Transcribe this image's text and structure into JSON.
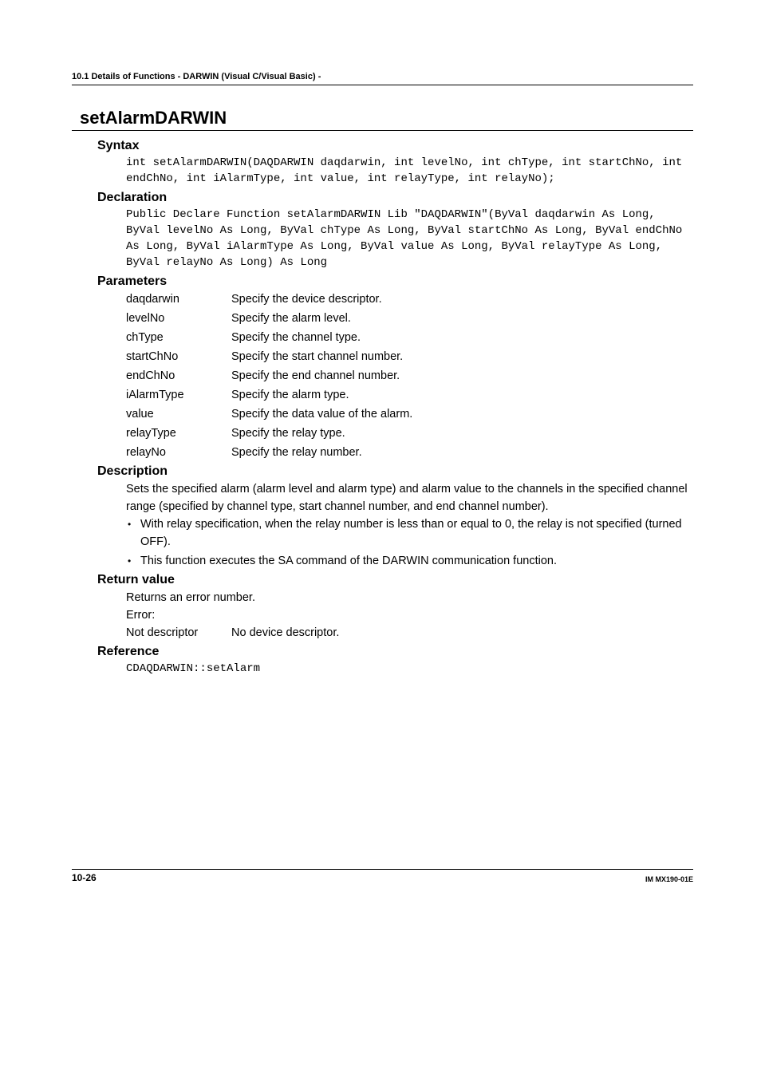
{
  "breadcrumb": "10.1  Details of Functions - DARWIN (Visual C/Visual   Basic) -",
  "fn_title": "setAlarmDARWIN",
  "sections": {
    "syntax": {
      "heading": "Syntax",
      "code": "int setAlarmDARWIN(DAQDARWIN daqdarwin, int levelNo, int chType, int startChNo, int endChNo, int iAlarmType, int value, int relayType, int relayNo);"
    },
    "declaration": {
      "heading": "Declaration",
      "code": "Public Declare Function setAlarmDARWIN Lib \"DAQDARWIN\"(ByVal daqdarwin As Long, ByVal levelNo As Long, ByVal chType As Long, ByVal startChNo As Long, ByVal endChNo As Long, ByVal iAlarmType As Long, ByVal value As Long, ByVal relayType As Long, ByVal relayNo As Long) As Long"
    },
    "parameters": {
      "heading": "Parameters",
      "rows": [
        {
          "name": "daqdarwin",
          "desc": "Specify the device descriptor."
        },
        {
          "name": "levelNo",
          "desc": "Specify the alarm level."
        },
        {
          "name": "chType",
          "desc": "Specify the channel type."
        },
        {
          "name": "startChNo",
          "desc": "Specify the start channel number."
        },
        {
          "name": "endChNo",
          "desc": "Specify the end channel number."
        },
        {
          "name": "iAlarmType",
          "desc": "Specify the alarm type."
        },
        {
          "name": "value",
          "desc": "Specify the data value of the alarm."
        },
        {
          "name": "relayType",
          "desc": "Specify the relay type."
        },
        {
          "name": "relayNo",
          "desc": "Specify the relay number."
        }
      ]
    },
    "description": {
      "heading": "Description",
      "intro": "Sets the specified alarm (alarm level and alarm type) and alarm value to the channels in the specified channel range (specified by channel type, start channel number, and end channel number).",
      "bullets": [
        "With relay specification, when the relay number is less than or equal to 0, the relay is not specified (turned OFF).",
        "This function executes the SA command of the DARWIN communication function."
      ]
    },
    "return_value": {
      "heading": "Return value",
      "line1": "Returns an error number.",
      "line2": "Error:",
      "err_name": "Not descriptor",
      "err_desc": "No device descriptor."
    },
    "reference": {
      "heading": "Reference",
      "code": "CDAQDARWIN::setAlarm"
    }
  },
  "footer": {
    "page": "10-26",
    "docid": "IM MX190-01E"
  }
}
